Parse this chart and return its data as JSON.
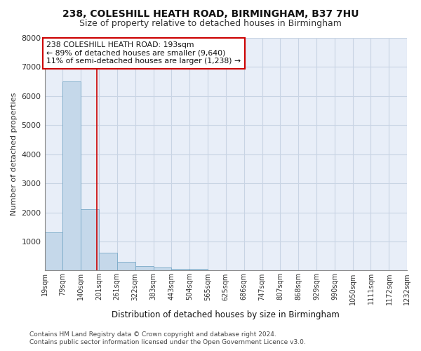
{
  "title1": "238, COLESHILL HEATH ROAD, BIRMINGHAM, B37 7HU",
  "title2": "Size of property relative to detached houses in Birmingham",
  "xlabel": "Distribution of detached houses by size in Birmingham",
  "ylabel": "Number of detached properties",
  "footnote1": "Contains HM Land Registry data © Crown copyright and database right 2024.",
  "footnote2": "Contains public sector information licensed under the Open Government Licence v3.0.",
  "annotation_line1": "238 COLESHILL HEATH ROAD: 193sqm",
  "annotation_line2": "← 89% of detached houses are smaller (9,640)",
  "annotation_line3": "11% of semi-detached houses are larger (1,238) →",
  "property_size": 193,
  "bar_color": "#c5d8ea",
  "bar_edge_color": "#7aaac8",
  "vline_color": "#cc0000",
  "grid_color": "#c8d4e4",
  "background_color": "#e8eef8",
  "bins": [
    19,
    79,
    140,
    201,
    261,
    322,
    383,
    443,
    504,
    565,
    625,
    686,
    747,
    807,
    868,
    929,
    990,
    1050,
    1111,
    1172,
    1232
  ],
  "counts": [
    1320,
    6500,
    2100,
    620,
    300,
    150,
    100,
    60,
    60,
    0,
    0,
    0,
    0,
    0,
    0,
    0,
    0,
    0,
    0,
    0
  ],
  "ylim": [
    0,
    8000
  ],
  "yticks": [
    1000,
    2000,
    3000,
    4000,
    5000,
    6000,
    7000,
    8000
  ]
}
